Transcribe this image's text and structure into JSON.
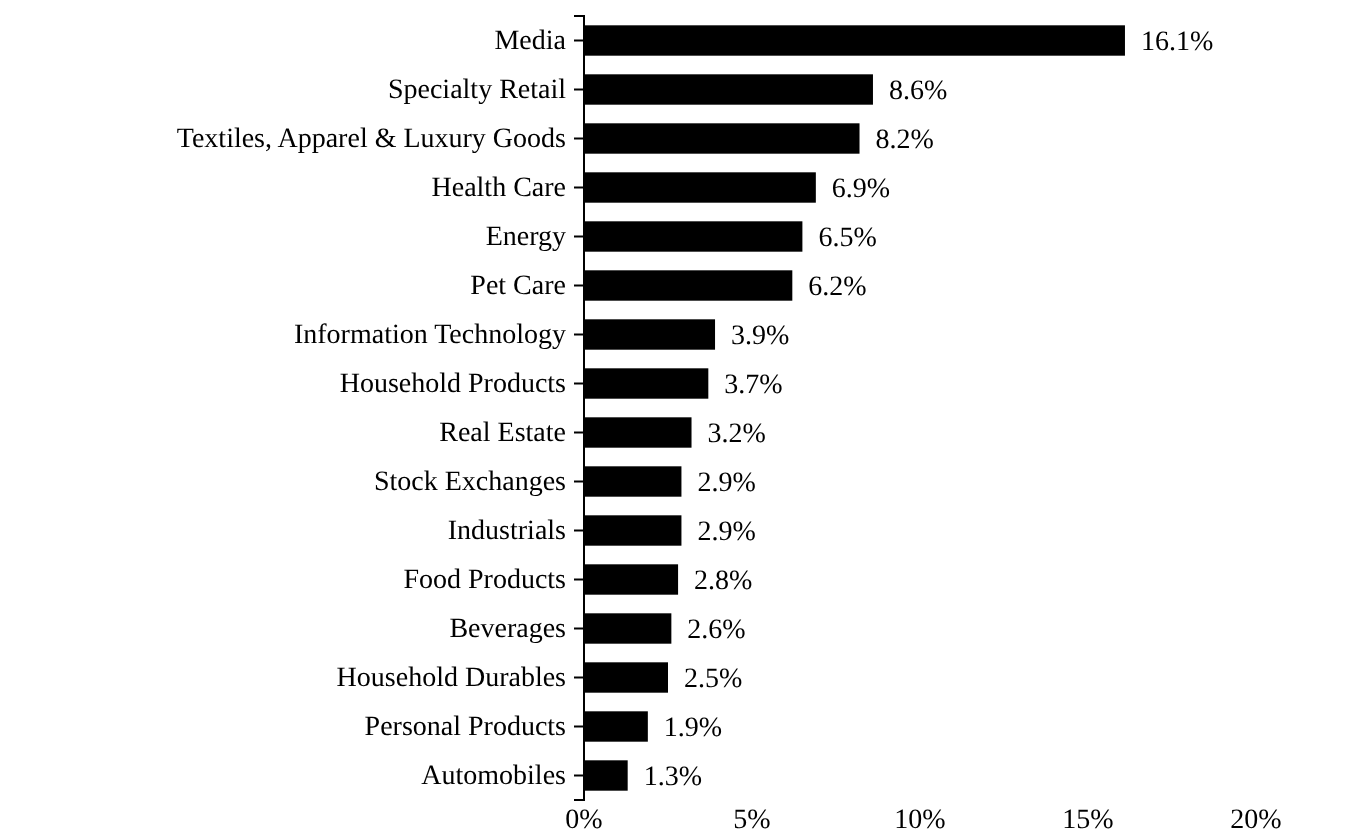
{
  "chart_data": {
    "type": "bar",
    "orientation": "horizontal",
    "categories": [
      "Media",
      "Specialty Retail",
      "Textiles, Apparel & Luxury Goods",
      "Health Care",
      "Energy",
      "Pet Care",
      "Information Technology",
      "Household Products",
      "Real Estate",
      "Stock Exchanges",
      "Industrials",
      "Food Products",
      "Beverages",
      "Household Durables",
      "Personal Products",
      "Automobiles"
    ],
    "values": [
      16.1,
      8.6,
      8.2,
      6.9,
      6.5,
      6.2,
      3.9,
      3.7,
      3.2,
      2.9,
      2.9,
      2.8,
      2.6,
      2.5,
      1.9,
      1.3
    ],
    "value_labels": [
      "16.1%",
      "8.6%",
      "8.2%",
      "6.9%",
      "6.5%",
      "6.2%",
      "3.9%",
      "3.7%",
      "3.2%",
      "2.9%",
      "2.9%",
      "2.8%",
      "2.6%",
      "2.5%",
      "1.9%",
      "1.3%"
    ],
    "color": "#000000",
    "xlim": [
      0,
      20
    ],
    "xticks": [
      {
        "value": 0,
        "label": "0%"
      },
      {
        "value": 5,
        "label": "5%"
      },
      {
        "value": 10,
        "label": "10%"
      },
      {
        "value": 15,
        "label": "15%"
      },
      {
        "value": 20,
        "label": "20%"
      }
    ],
    "grid": false
  }
}
